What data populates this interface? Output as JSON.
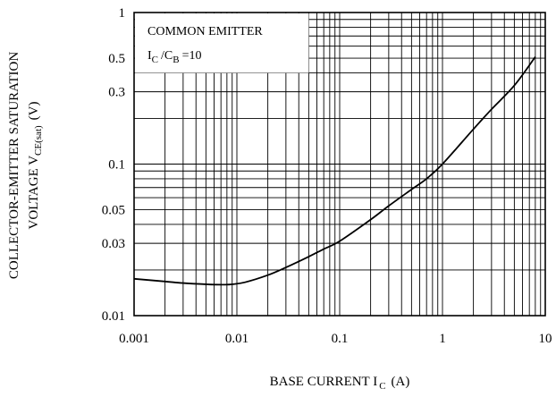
{
  "chart_data": {
    "type": "line",
    "title": "",
    "xscale": "log",
    "yscale": "log",
    "xlim": [
      0.001,
      10
    ],
    "ylim": [
      0.01,
      1
    ],
    "grid": true,
    "xlabel": {
      "main": "BASE CURRENT I",
      "sub": "C",
      "unit": "(A)"
    },
    "ylabel": {
      "line1": "COLLECTOR-EMITTER SATURATION",
      "line2_main": "VOLTAGE V",
      "line2_sub": "CE(sat)",
      "line2_unit": "(V)"
    },
    "xticks": [
      {
        "value": 0.001,
        "label": "0.001"
      },
      {
        "value": 0.01,
        "label": "0.01"
      },
      {
        "value": 0.1,
        "label": "0.1"
      },
      {
        "value": 1,
        "label": "1"
      },
      {
        "value": 10,
        "label": "10"
      }
    ],
    "yticks": [
      {
        "value": 0.01,
        "label": "0.01"
      },
      {
        "value": 0.03,
        "label": "0.03"
      },
      {
        "value": 0.05,
        "label": "0.05"
      },
      {
        "value": 0.1,
        "label": "0.1"
      },
      {
        "value": 0.3,
        "label": "0.3"
      },
      {
        "value": 0.5,
        "label": "0.5"
      },
      {
        "value": 1,
        "label": "1"
      }
    ],
    "annotation": {
      "line1": "COMMON EMITTER",
      "line2_a": "I",
      "line2_a_sub": "C",
      "line2_b": "/C",
      "line2_b_sub": "B",
      "line2_c": "=10"
    },
    "series": [
      {
        "x": [
          0.001,
          0.002,
          0.003,
          0.005,
          0.007,
          0.009,
          0.012,
          0.02,
          0.03,
          0.05,
          0.07,
          0.1,
          0.2,
          0.3,
          0.5,
          0.7,
          1,
          2,
          3,
          5,
          8
        ],
        "y": [
          0.0175,
          0.0168,
          0.0164,
          0.0161,
          0.016,
          0.0161,
          0.0166,
          0.0185,
          0.0208,
          0.0245,
          0.0275,
          0.031,
          0.043,
          0.053,
          0.068,
          0.08,
          0.1,
          0.17,
          0.23,
          0.33,
          0.51
        ]
      }
    ]
  }
}
